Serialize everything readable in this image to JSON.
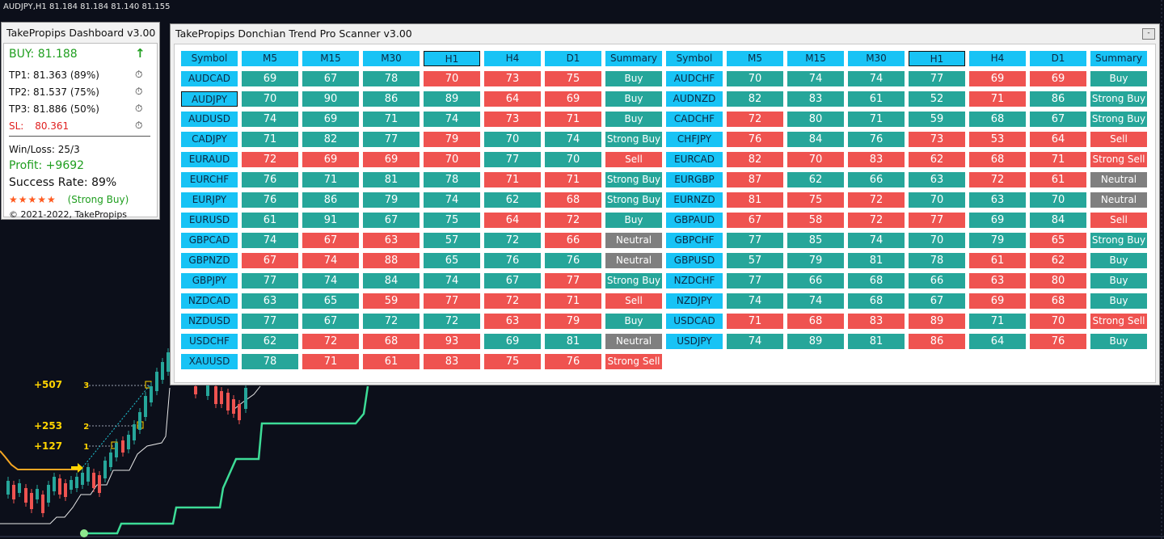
{
  "chart": {
    "symbol_line": "AUDJPY,H1  81.184 81.184 81.140 81.155",
    "levels": [
      {
        "label": "+507",
        "badge": "3"
      },
      {
        "label": "+253",
        "badge": "2"
      },
      {
        "label": "+127",
        "badge": "1"
      }
    ]
  },
  "dashboard": {
    "title": "TakePropips Dashboard v3.00",
    "signal": "BUY: 81.188",
    "tp1": "TP1: 81.363 (89%)",
    "tp2": "TP2: 81.537 (75%)",
    "tp3": "TP3: 81.886 (50%)",
    "sl_label": "SL:",
    "sl_value": "80.361",
    "winloss": "Win/Loss: 25/3",
    "profit": "Profit: +9692",
    "success": "Success Rate: 89%",
    "stars": "★★★★★",
    "rating": "(Strong Buy)",
    "copyright": "© 2021-2022, TakePropips",
    "colors": {
      "buy": "#1f9e1f",
      "sl": "#e02020",
      "stars": "#ff5a1f"
    }
  },
  "scanner": {
    "title": "TakePropips Donchian Trend Pro Scanner v3.00",
    "minimize": "-",
    "headers": [
      "Symbol",
      "M5",
      "M15",
      "M30",
      "H1",
      "H4",
      "D1",
      "Summary"
    ],
    "selected_header": "H1",
    "selected_symbol": "AUDJPY",
    "colors": {
      "bull": "#26a69a",
      "bear": "#ef5350",
      "neutral": "#7f7f7f",
      "header": "#18c3f5"
    },
    "left": [
      {
        "symbol": "AUDCAD",
        "values": [
          69,
          67,
          78,
          70,
          73,
          75
        ],
        "dirs": "gggrrr",
        "summary": "Buy"
      },
      {
        "symbol": "AUDJPY",
        "values": [
          70,
          90,
          86,
          89,
          64,
          69
        ],
        "dirs": "ggggrr",
        "summary": "Buy"
      },
      {
        "symbol": "AUDUSD",
        "values": [
          74,
          69,
          71,
          74,
          73,
          71
        ],
        "dirs": "ggggrr",
        "summary": "Buy"
      },
      {
        "symbol": "CADJPY",
        "values": [
          71,
          82,
          77,
          79,
          70,
          74
        ],
        "dirs": "gggrgg",
        "summary": "Strong Buy"
      },
      {
        "symbol": "EURAUD",
        "values": [
          72,
          69,
          69,
          70,
          77,
          70
        ],
        "dirs": "rrrrgg",
        "summary": "Sell"
      },
      {
        "symbol": "EURCHF",
        "values": [
          76,
          71,
          81,
          78,
          71,
          71
        ],
        "dirs": "ggggrr",
        "summary": "Strong Buy"
      },
      {
        "symbol": "EURJPY",
        "values": [
          76,
          86,
          79,
          74,
          62,
          68
        ],
        "dirs": "gggggr",
        "summary": "Strong Buy"
      },
      {
        "symbol": "EURUSD",
        "values": [
          61,
          91,
          67,
          75,
          64,
          72
        ],
        "dirs": "ggggrr",
        "summary": "Buy"
      },
      {
        "symbol": "GBPCAD",
        "values": [
          74,
          67,
          63,
          57,
          72,
          66
        ],
        "dirs": "grrggr",
        "summary": "Neutral"
      },
      {
        "symbol": "GBPNZD",
        "values": [
          67,
          74,
          88,
          65,
          76,
          76
        ],
        "dirs": "rrrggg",
        "summary": "Neutral"
      },
      {
        "symbol": "GBPJPY",
        "values": [
          77,
          74,
          84,
          74,
          67,
          77
        ],
        "dirs": "gggggr",
        "summary": "Strong Buy"
      },
      {
        "symbol": "NZDCAD",
        "values": [
          63,
          65,
          59,
          77,
          72,
          71
        ],
        "dirs": "ggrrrr",
        "summary": "Sell"
      },
      {
        "symbol": "NZDUSD",
        "values": [
          77,
          67,
          72,
          72,
          63,
          79
        ],
        "dirs": "ggggrr",
        "summary": "Buy"
      },
      {
        "symbol": "USDCHF",
        "values": [
          62,
          72,
          68,
          93,
          69,
          81
        ],
        "dirs": "grrrgg",
        "summary": "Neutral"
      },
      {
        "symbol": "XAUUSD",
        "values": [
          78,
          71,
          61,
          83,
          75,
          76
        ],
        "dirs": "grrrrr",
        "summary": "Strong Sell"
      }
    ],
    "right": [
      {
        "symbol": "AUDCHF",
        "values": [
          70,
          74,
          74,
          77,
          69,
          69
        ],
        "dirs": "ggggrr",
        "summary": "Buy"
      },
      {
        "symbol": "AUDNZD",
        "values": [
          82,
          83,
          61,
          52,
          71,
          86
        ],
        "dirs": "ggggrg",
        "summary": "Strong Buy"
      },
      {
        "symbol": "CADCHF",
        "values": [
          72,
          80,
          71,
          59,
          68,
          67
        ],
        "dirs": "rggggg",
        "summary": "Strong Buy"
      },
      {
        "symbol": "CHFJPY",
        "values": [
          76,
          84,
          76,
          73,
          53,
          64
        ],
        "dirs": "rggrrr",
        "summary": "Sell"
      },
      {
        "symbol": "EURCAD",
        "values": [
          82,
          70,
          83,
          62,
          68,
          71
        ],
        "dirs": "rrrrrr",
        "summary": "Strong Sell"
      },
      {
        "symbol": "EURGBP",
        "values": [
          87,
          62,
          66,
          63,
          72,
          61
        ],
        "dirs": "rgggrr",
        "summary": "Neutral"
      },
      {
        "symbol": "EURNZD",
        "values": [
          81,
          75,
          72,
          70,
          63,
          70
        ],
        "dirs": "rrrggg",
        "summary": "Neutral"
      },
      {
        "symbol": "GBPAUD",
        "values": [
          67,
          58,
          72,
          77,
          69,
          84
        ],
        "dirs": "rrrrgg",
        "summary": "Sell"
      },
      {
        "symbol": "GBPCHF",
        "values": [
          77,
          85,
          74,
          70,
          79,
          65
        ],
        "dirs": "gggggr",
        "summary": "Strong Buy"
      },
      {
        "symbol": "GBPUSD",
        "values": [
          57,
          79,
          81,
          78,
          61,
          62
        ],
        "dirs": "ggggrr",
        "summary": "Buy"
      },
      {
        "symbol": "NZDCHF",
        "values": [
          77,
          66,
          68,
          66,
          63,
          80
        ],
        "dirs": "ggggrr",
        "summary": "Buy"
      },
      {
        "symbol": "NZDJPY",
        "values": [
          74,
          74,
          68,
          67,
          69,
          68
        ],
        "dirs": "ggggrr",
        "summary": "Buy"
      },
      {
        "symbol": "USDCAD",
        "values": [
          71,
          68,
          83,
          89,
          71,
          70
        ],
        "dirs": "rrrrgr",
        "summary": "Strong Sell"
      },
      {
        "symbol": "USDJPY",
        "values": [
          74,
          89,
          81,
          86,
          64,
          76
        ],
        "dirs": "gggrgr",
        "summary": "Buy"
      }
    ]
  }
}
